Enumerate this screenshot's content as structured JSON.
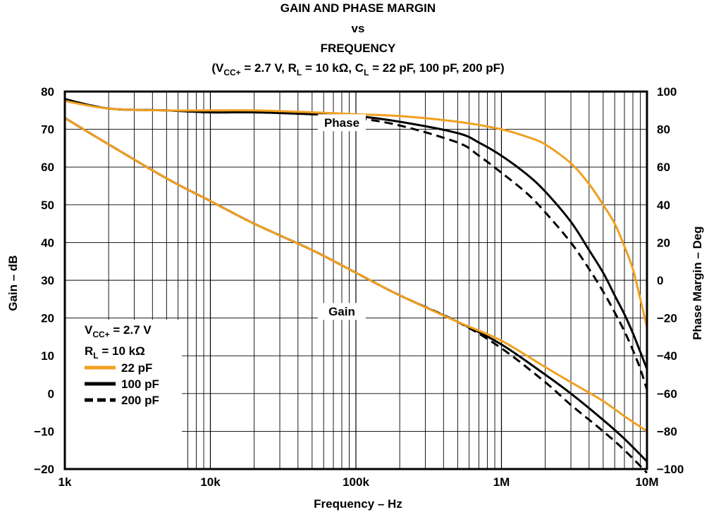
{
  "chart_data": {
    "type": "line",
    "title_lines": [
      "GAIN AND PHASE MARGIN",
      "vs",
      "FREQUENCY"
    ],
    "title_conditions": {
      "open": "(V",
      "vcc_sub": "CC+",
      "mid1": " = 2.7 V, R",
      "rl_sub": "L",
      "mid2": " = 10 kΩ, C",
      "cl_sub": "L",
      "end": " = 22 pF, 100 pF, 200 pF)"
    },
    "xlabel": "Frequency – Hz",
    "ylabel_left": "Gain – dB",
    "ylabel_right": "Phase Margin – Deg",
    "x_scale": "log",
    "xlim": [
      1000,
      10000000
    ],
    "ylim_left": [
      -20,
      80
    ],
    "ylim_right": [
      -100,
      100
    ],
    "grid": true,
    "x_ticks": [
      {
        "value": 1000,
        "label": "1k"
      },
      {
        "value": 10000,
        "label": "10k"
      },
      {
        "value": 100000,
        "label": "100k"
      },
      {
        "value": 1000000,
        "label": "1M"
      },
      {
        "value": 10000000,
        "label": "10M"
      }
    ],
    "y_left_ticks": [
      {
        "value": 80,
        "label": "80"
      },
      {
        "value": 70,
        "label": "70"
      },
      {
        "value": 60,
        "label": "60"
      },
      {
        "value": 50,
        "label": "50"
      },
      {
        "value": 40,
        "label": "40"
      },
      {
        "value": 30,
        "label": "30"
      },
      {
        "value": 20,
        "label": "20"
      },
      {
        "value": 10,
        "label": "10"
      },
      {
        "value": 0,
        "label": "0"
      },
      {
        "value": -10,
        "label": "−10"
      },
      {
        "value": -20,
        "label": "−20"
      }
    ],
    "y_right_ticks": [
      {
        "value": 100,
        "label": "100"
      },
      {
        "value": 80,
        "label": "80"
      },
      {
        "value": 60,
        "label": "60"
      },
      {
        "value": 40,
        "label": "40"
      },
      {
        "value": 20,
        "label": "20"
      },
      {
        "value": 0,
        "label": "0"
      },
      {
        "value": -20,
        "label": "−20"
      },
      {
        "value": -40,
        "label": "−40"
      },
      {
        "value": -60,
        "label": "−60"
      },
      {
        "value": -80,
        "label": "−80"
      },
      {
        "value": -100,
        "label": "−100"
      }
    ],
    "annotations": [
      {
        "text": "Phase",
        "x": 80000,
        "y": 71
      },
      {
        "text": "Gain",
        "x": 80000,
        "y": 21
      }
    ],
    "legend": {
      "placement": "bottom-left",
      "condition1": {
        "main": "V",
        "sub": "CC+",
        "rest": " = 2.7 V"
      },
      "condition2": {
        "main": "R",
        "sub": "L",
        "rest": " = 10 kΩ"
      }
    },
    "series": [
      {
        "name": "22 pF",
        "color": "#f0a020",
        "dash": "solid",
        "gain": {
          "x": [
            1000,
            2000,
            5000,
            10000,
            20000,
            50000,
            100000,
            200000,
            500000,
            1000000,
            2000000,
            3000000,
            5000000,
            7000000,
            10000000
          ],
          "y": [
            73,
            66,
            57,
            51,
            45,
            38,
            32,
            26,
            19,
            14,
            7,
            3,
            -2,
            -6,
            -10
          ]
        },
        "phase": {
          "x": [
            1000,
            2000,
            5000,
            10000,
            20000,
            50000,
            100000,
            200000,
            500000,
            1000000,
            1500000,
            2000000,
            3000000,
            4000000,
            5000000,
            6000000,
            7000000,
            8000000,
            9000000,
            10000000
          ],
          "y": [
            95,
            91,
            90,
            90,
            90,
            89,
            88,
            87,
            84,
            80,
            76,
            72,
            62,
            51,
            40,
            30,
            18,
            6,
            -10,
            -25
          ]
        }
      },
      {
        "name": "100 pF",
        "color": "#000000",
        "dash": "solid",
        "gain": {
          "x": [
            1000,
            2000,
            5000,
            10000,
            20000,
            50000,
            100000,
            200000,
            500000,
            1000000,
            2000000,
            3000000,
            5000000,
            7000000,
            10000000
          ],
          "y": [
            73,
            66,
            57,
            51,
            45,
            38,
            32,
            26,
            19,
            13,
            5,
            0,
            -7,
            -12,
            -18
          ]
        },
        "phase": {
          "x": [
            1000,
            2000,
            5000,
            10000,
            20000,
            50000,
            100000,
            200000,
            500000,
            700000,
            1000000,
            1500000,
            2000000,
            3000000,
            4000000,
            5000000,
            6000000,
            7000000,
            8000000,
            9000000,
            10000000
          ],
          "y": [
            96,
            91,
            90,
            89,
            89,
            88,
            87,
            84,
            78,
            73,
            66,
            56,
            47,
            31,
            16,
            4,
            -8,
            -18,
            -28,
            -38,
            -47
          ]
        }
      },
      {
        "name": "200 pF",
        "color": "#000000",
        "dash": "dashed",
        "gain": {
          "x": [
            1000,
            2000,
            5000,
            10000,
            20000,
            50000,
            100000,
            200000,
            500000,
            1000000,
            2000000,
            3000000,
            5000000,
            7000000,
            10000000
          ],
          "y": [
            73,
            66,
            57,
            51,
            45,
            38,
            32,
            26,
            19,
            12,
            3,
            -3,
            -10,
            -15,
            -21
          ]
        },
        "phase": {
          "x": [
            1000,
            2000,
            5000,
            10000,
            20000,
            50000,
            100000,
            200000,
            500000,
            700000,
            1000000,
            1500000,
            2000000,
            3000000,
            4000000,
            5000000,
            6000000,
            7000000,
            8000000,
            9000000,
            10000000
          ],
          "y": [
            96,
            91,
            90,
            89,
            89,
            88,
            86,
            82,
            73,
            66,
            57,
            46,
            36,
            20,
            6,
            -6,
            -17,
            -27,
            -37,
            -47,
            -58
          ]
        }
      }
    ]
  }
}
